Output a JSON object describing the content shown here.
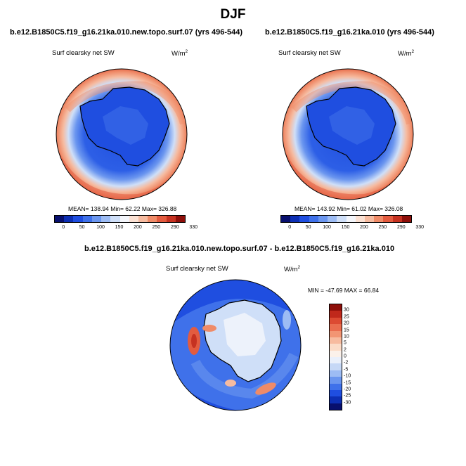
{
  "title": "DJF",
  "panels": [
    {
      "title": "b.e12.B1850C5.f19_g16.21ka.010.new.topo.surf.07 (yrs 496-544)",
      "variable": "Surf clearsky net SW",
      "units": "W/m",
      "units_exp": "2",
      "stats": "MEAN= 138.94  Min=  62.22  Max= 326.88"
    },
    {
      "title": "b.e12.B1850C5.f19_g16.21ka.010 (yrs 496-544)",
      "variable": "Surf clearsky net SW",
      "units": "W/m",
      "units_exp": "2",
      "stats": "MEAN= 143.92  Min=  61.02  Max= 326.08"
    }
  ],
  "diff": {
    "title": "b.e12.B1850C5.f19_g16.21ka.010.new.topo.surf.07 - b.e12.B1850C5.f19_g16.21ka.010",
    "variable": "Surf clearsky net SW",
    "units": "W/m",
    "units_exp": "2",
    "stats": "MIN = -47.69 MAX =  66.84"
  },
  "colorbar_abs": {
    "ticks": [
      "0",
      "50",
      "100",
      "150",
      "200",
      "250",
      "290",
      "330"
    ],
    "colors": [
      "#08106e",
      "#0d2fb4",
      "#1f4ee0",
      "#3f71ea",
      "#6b96ef",
      "#9dbcf4",
      "#cfdff8",
      "#f4f6fb",
      "#fbe1d3",
      "#f6bba0",
      "#ef8b68",
      "#e35b3f",
      "#c63221",
      "#8e0f0a"
    ]
  },
  "colorbar_diff": {
    "ticks": [
      "30",
      "25",
      "20",
      "15",
      "10",
      "5",
      "2",
      "0",
      "-2",
      "-5",
      "-10",
      "-15",
      "-20",
      "-25",
      "-30"
    ],
    "colors": [
      "#8e0f0a",
      "#c0281b",
      "#dc4a32",
      "#ea6d4f",
      "#f29573",
      "#f7bb9f",
      "#fbdcc8",
      "#fbf1ea",
      "#eaf0fb",
      "#c6d8f6",
      "#9dbcf4",
      "#6b96ef",
      "#3f71ea",
      "#1f4ee0",
      "#0d2fb4",
      "#08106e"
    ]
  }
}
